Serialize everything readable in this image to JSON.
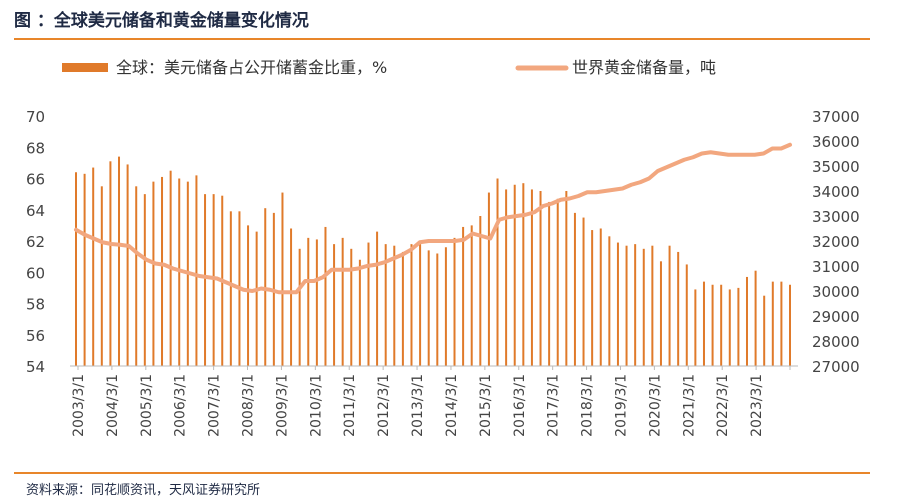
{
  "title": "图 ：全球美元储备和黄金储量变化情况",
  "source": "资料来源：同花顺资讯，天风证券研究所",
  "chart_data": {
    "type": "bar+line",
    "legend": {
      "placement": "top",
      "entries": [
        "全球：美元储备占公开储蓄金比重，%",
        "世界黄金储备量，吨"
      ]
    },
    "colors": {
      "bar": "#e07a2a",
      "line": "#f2a77f",
      "rule": "#e8862a"
    },
    "left_axis": {
      "ticks": [
        "70",
        "68",
        "66",
        "64",
        "62",
        "60",
        "58",
        "56",
        "54"
      ],
      "ylim": [
        54,
        70
      ]
    },
    "right_axis": {
      "ticks": [
        "37000",
        "36000",
        "35000",
        "34000",
        "33000",
        "32000",
        "31000",
        "30000",
        "29000",
        "28000",
        "27000"
      ],
      "ylim": [
        27000,
        37000
      ]
    },
    "x_ticks": [
      "2003/3/1",
      "2004/3/1",
      "2005/3/1",
      "2006/3/1",
      "2007/3/1",
      "2008/3/1",
      "2009/3/1",
      "2010/3/1",
      "2011/3/1",
      "2012/3/1",
      "2013/3/1",
      "2014/3/1",
      "2015/3/1",
      "2016/3/1",
      "2017/3/1",
      "2018/3/1",
      "2019/3/1",
      "2020/3/1",
      "2021/3/1",
      "2022/3/1",
      "2023/3/1"
    ],
    "series": [
      {
        "name": "全球：美元储备占公开储蓄金比重，%",
        "type": "bar",
        "axis": "left",
        "values": [
          66.4,
          66.3,
          66.7,
          65.5,
          67.1,
          67.4,
          66.9,
          65.5,
          65.0,
          65.8,
          66.1,
          66.5,
          66.0,
          65.8,
          66.2,
          65.0,
          65.0,
          64.9,
          63.9,
          63.9,
          63.0,
          62.6,
          64.1,
          63.8,
          65.1,
          62.8,
          61.5,
          62.2,
          62.1,
          62.9,
          61.8,
          62.2,
          61.5,
          60.8,
          61.9,
          62.6,
          61.8,
          61.7,
          61.3,
          61.8,
          61.8,
          61.4,
          61.2,
          61.6,
          62.2,
          62.9,
          63.0,
          63.6,
          65.1,
          66.0,
          65.3,
          65.6,
          65.7,
          65.3,
          65.2,
          64.5,
          64.7,
          65.2,
          63.8,
          63.5,
          62.7,
          62.8,
          62.3,
          61.9,
          61.7,
          61.8,
          61.5,
          61.7,
          60.7,
          61.7,
          61.3,
          60.5,
          58.9,
          59.4,
          59.2,
          59.2,
          58.9,
          59.0,
          59.7,
          60.1,
          58.5,
          59.4,
          59.4,
          59.2
        ]
      },
      {
        "name": "世界黄金储备量，吨",
        "type": "line",
        "axis": "right",
        "values": [
          32450,
          32250,
          32100,
          31950,
          31880,
          31850,
          31800,
          31500,
          31250,
          31100,
          31050,
          30900,
          30800,
          30700,
          30600,
          30550,
          30500,
          30350,
          30200,
          30050,
          30000,
          30100,
          30050,
          29950,
          29950,
          29950,
          30400,
          30400,
          30550,
          30850,
          30850,
          30850,
          30900,
          31000,
          31050,
          31150,
          31300,
          31450,
          31650,
          31950,
          32000,
          32000,
          32000,
          32000,
          32050,
          32300,
          32200,
          32100,
          32850,
          32950,
          33000,
          33050,
          33150,
          33400,
          33500,
          33650,
          33700,
          33800,
          33950,
          33950,
          34000,
          34050,
          34100,
          34250,
          34350,
          34500,
          34800,
          34950,
          35100,
          35250,
          35350,
          35500,
          35550,
          35500,
          35450,
          35450,
          35450,
          35450,
          35500,
          35700,
          35700,
          35850
        ]
      }
    ]
  }
}
